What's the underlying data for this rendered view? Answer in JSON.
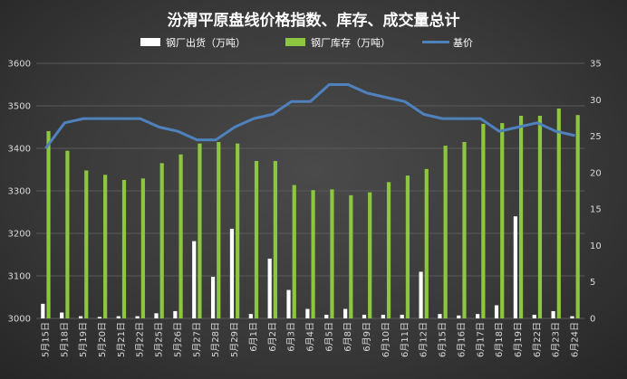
{
  "chart_data": {
    "type": "bar",
    "title": "汾渭平原盘线价格指数、库存、成交量总计",
    "categories": [
      "5月15日",
      "5月18日",
      "5月19日",
      "5月20日",
      "5月21日",
      "5月22日",
      "5月25日",
      "5月26日",
      "5月27日",
      "5月28日",
      "5月29日",
      "6月1日",
      "6月2日",
      "6月3日",
      "6月4日",
      "6月5日",
      "6月8日",
      "6月9日",
      "6月10日",
      "6月11日",
      "6月12日",
      "6月15日",
      "6月16日",
      "6月17日",
      "6月18日",
      "6月19日",
      "6月22日",
      "6月23日",
      "6月24日"
    ],
    "left_axis": {
      "ylim": [
        3000,
        3600
      ],
      "ticks": [
        3000,
        3100,
        3200,
        3300,
        3400,
        3500,
        3600
      ]
    },
    "right_axis": {
      "ylim": [
        0,
        35
      ],
      "ticks": [
        0,
        5,
        10,
        15,
        20,
        25,
        30,
        35
      ]
    },
    "series": [
      {
        "name": "钢厂出货（万吨）",
        "type": "bar",
        "axis": "right",
        "color": "#ffffff",
        "values": [
          2.0,
          0.8,
          0.3,
          0.2,
          0.3,
          0.3,
          0.7,
          1.0,
          10.6,
          5.7,
          12.3,
          0.6,
          8.2,
          3.9,
          1.3,
          0.5,
          1.3,
          0.5,
          0.5,
          0.5,
          6.4,
          0.6,
          0.4,
          0.6,
          1.8,
          14.0,
          0.5,
          1.0,
          0.3
        ]
      },
      {
        "name": "钢厂库存（万吨）",
        "type": "bar",
        "axis": "right",
        "color": "#8dc63f",
        "values": [
          25.7,
          23.0,
          20.3,
          19.7,
          19.0,
          19.2,
          21.3,
          22.5,
          24.0,
          24.2,
          24.0,
          21.6,
          21.6,
          18.3,
          17.6,
          17.7,
          16.9,
          17.3,
          18.7,
          19.6,
          20.5,
          23.7,
          24.2,
          26.7,
          26.8,
          27.8,
          27.8,
          28.8,
          27.9
        ]
      },
      {
        "name": "基价",
        "type": "line",
        "axis": "left",
        "color": "#4f81bd",
        "values": [
          3400,
          3460,
          3470,
          3470,
          3470,
          3470,
          3450,
          3440,
          3420,
          3420,
          3450,
          3470,
          3480,
          3510,
          3510,
          3550,
          3550,
          3530,
          3520,
          3510,
          3480,
          3470,
          3470,
          3470,
          3440,
          3450,
          3460,
          3440,
          3430
        ]
      }
    ],
    "legend_position": "top",
    "grid": true
  }
}
